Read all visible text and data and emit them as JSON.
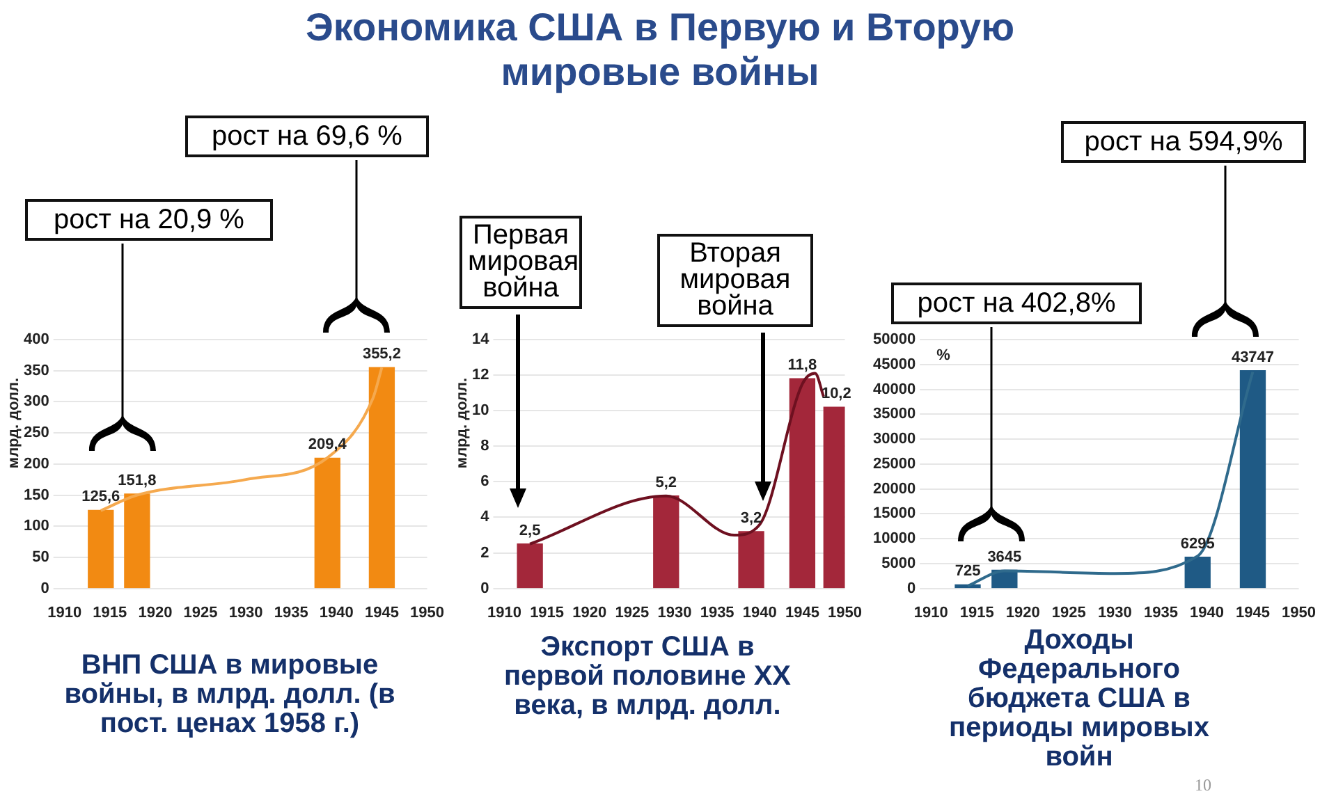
{
  "chart_data": [
    {
      "type": "bar",
      "title": "Экономика США в Первую и Вторую мировые войны",
      "subtitle": "ВНП США в мировые войны, в млрд. долл. (в пост. ценах 1958 г.)",
      "ylabel": "млрд. долл.",
      "xlim": [
        1910,
        1950
      ],
      "xticks": [
        1910,
        1915,
        1920,
        1925,
        1930,
        1935,
        1940,
        1945,
        1950
      ],
      "ylim": [
        0,
        400
      ],
      "yticks": [
        0,
        50,
        100,
        150,
        200,
        250,
        300,
        350,
        400
      ],
      "grid": "y",
      "legend": false,
      "marker": "none",
      "annotations": [
        "рост на 20,9 %",
        "рост на 69,6 %"
      ],
      "series": [
        {
          "color": "#f28a12",
          "x": [
            1914,
            1918,
            1939,
            1945
          ],
          "values": [
            125.6,
            151.8,
            209.4,
            355.2
          ],
          "value_labels": [
            "125,6",
            "151,8",
            "209,4",
            "355,2"
          ]
        },
        {
          "type": "line",
          "color": "#f5a94e",
          "x": [
            1914,
            1918,
            1930,
            1939,
            1944,
            1945
          ],
          "values": [
            125,
            150,
            175,
            210,
            305,
            355
          ]
        }
      ]
    },
    {
      "type": "bar",
      "subtitle": "Экспорт США в первой половине XX века, в млрд. долл.",
      "ylabel": "млрд. долл.",
      "xlim": [
        1910,
        1950
      ],
      "xticks": [
        1910,
        1915,
        1920,
        1925,
        1930,
        1935,
        1940,
        1945,
        1950
      ],
      "ylim": [
        0,
        14
      ],
      "yticks": [
        0,
        2,
        4,
        6,
        8,
        10,
        12,
        14
      ],
      "grid": "y",
      "legend": false,
      "marker": "none",
      "annotations": [
        "Первая мировая война",
        "Вторая мировая война"
      ],
      "series": [
        {
          "color": "#a3273a",
          "x": [
            1913,
            1929,
            1939,
            1945,
            1949
          ],
          "values": [
            2.5,
            5.2,
            3.2,
            11.8,
            10.2
          ],
          "value_labels": [
            "2,5",
            "5,2",
            "3,2",
            "11,8",
            "10,2"
          ]
        },
        {
          "type": "line",
          "color": "#6e1020",
          "x": [
            1913,
            1929,
            1937,
            1940,
            1945,
            1946.5,
            1947.5
          ],
          "values": [
            2.5,
            5.2,
            3.0,
            3.6,
            11.5,
            12.1,
            10.8
          ]
        }
      ]
    },
    {
      "type": "bar",
      "subtitle": "Доходы Федерального бюджета США в периоды мировых войн",
      "ylabel": "%",
      "xlim": [
        1910,
        1950
      ],
      "xticks": [
        1910,
        1915,
        1920,
        1925,
        1930,
        1935,
        1940,
        1945,
        1950
      ],
      "ylim": [
        0,
        50000
      ],
      "yticks": [
        0,
        5000,
        10000,
        15000,
        20000,
        25000,
        30000,
        35000,
        40000,
        45000,
        50000
      ],
      "grid": "y",
      "legend": false,
      "marker": "none",
      "annotations": [
        "рост на 402,8%",
        "рост на 594,9%",
        "10"
      ],
      "series": [
        {
          "color": "#1f5a85",
          "x": [
            1914,
            1918,
            1939,
            1945
          ],
          "values": [
            725,
            3645,
            6295,
            43747
          ],
          "value_labels": [
            "725",
            "3645",
            "6295",
            "43747"
          ]
        },
        {
          "type": "line",
          "color": "#2f6a8c",
          "x": [
            1914,
            1918,
            1930,
            1939,
            1945
          ],
          "values": [
            500,
            3500,
            3000,
            6500,
            43500
          ]
        }
      ]
    }
  ]
}
